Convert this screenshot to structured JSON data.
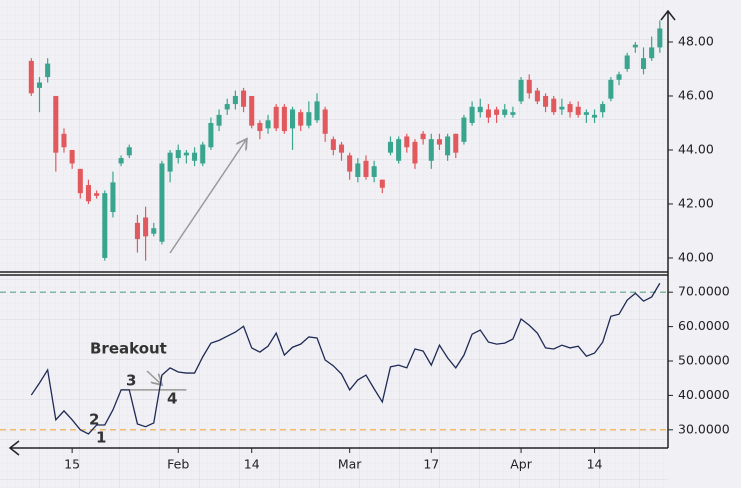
{
  "chart_data": [
    {
      "type": "candlestick",
      "x": [
        0,
        1,
        2,
        3,
        4,
        5,
        6,
        7,
        8,
        9,
        10,
        11,
        12,
        13,
        14,
        15,
        16,
        17,
        18,
        19,
        20,
        21,
        22,
        23,
        24,
        25,
        26,
        27,
        28,
        29,
        30,
        31,
        32,
        33,
        34,
        35,
        36,
        37,
        38,
        39,
        40,
        41,
        42,
        43,
        44,
        45,
        46,
        47,
        48,
        49,
        50,
        51,
        52,
        53,
        54,
        55,
        56,
        57,
        58,
        59,
        60,
        61,
        62,
        63,
        64,
        65,
        66,
        67,
        68,
        69,
        70,
        71,
        72,
        73,
        74,
        75,
        76,
        77
      ],
      "open": [
        47.3,
        46.3,
        46.7,
        46.0,
        44.6,
        44.0,
        43.3,
        42.7,
        42.4,
        40.0,
        41.7,
        43.5,
        43.8,
        41.3,
        41.5,
        40.9,
        40.6,
        43.2,
        43.7,
        43.8,
        43.6,
        43.5,
        44.1,
        44.9,
        45.5,
        45.7,
        46.2,
        46.0,
        45.0,
        44.8,
        45.6,
        45.6,
        44.8,
        45.4,
        44.9,
        45.1,
        45.5,
        44.4,
        44.2,
        43.8,
        43.0,
        43.6,
        43.0,
        42.9,
        43.9,
        43.6,
        44.5,
        44.3,
        44.6,
        43.6,
        44.4,
        43.8,
        44.6,
        44.3,
        45.0,
        45.4,
        45.5,
        45.5,
        45.3,
        45.3,
        45.8,
        46.6,
        46.2,
        46.0,
        45.9,
        45.5,
        45.7,
        45.6,
        45.3,
        45.2,
        45.4,
        45.9,
        46.6,
        47.0,
        47.8,
        47.0,
        47.4,
        47.8
      ],
      "high": [
        47.4,
        46.7,
        47.4,
        46.0,
        44.8,
        44.0,
        43.3,
        42.9,
        42.5,
        42.5,
        43.2,
        43.8,
        44.2,
        41.6,
        41.9,
        41.3,
        43.6,
        44.0,
        44.2,
        44.0,
        44.1,
        44.3,
        45.2,
        45.5,
        45.9,
        46.2,
        46.3,
        46.0,
        45.1,
        45.3,
        45.7,
        45.7,
        45.6,
        45.5,
        45.8,
        46.1,
        45.6,
        44.5,
        44.3,
        43.9,
        43.7,
        43.8,
        43.6,
        42.9,
        44.5,
        44.5,
        44.6,
        44.4,
        44.7,
        44.6,
        44.6,
        44.6,
        44.6,
        45.3,
        45.8,
        45.9,
        45.7,
        45.6,
        45.7,
        45.6,
        46.7,
        46.8,
        46.3,
        46.1,
        46.0,
        45.9,
        45.8,
        45.8,
        45.5,
        45.5,
        45.8,
        46.7,
        46.9,
        47.6,
        48.0,
        47.8,
        48.2,
        48.8
      ],
      "low": [
        46.0,
        45.4,
        46.5,
        43.2,
        43.9,
        43.3,
        42.2,
        42.0,
        42.2,
        39.9,
        41.5,
        43.4,
        43.7,
        40.2,
        39.9,
        40.8,
        40.5,
        42.8,
        43.5,
        43.5,
        43.4,
        43.4,
        44.0,
        44.7,
        45.3,
        45.5,
        45.4,
        44.8,
        44.4,
        44.6,
        44.7,
        44.6,
        44.0,
        44.7,
        44.8,
        45.0,
        44.3,
        43.8,
        43.6,
        42.9,
        42.8,
        42.9,
        42.8,
        42.4,
        43.8,
        43.5,
        43.9,
        43.3,
        44.2,
        43.3,
        44.0,
        43.6,
        43.7,
        44.2,
        44.9,
        45.2,
        45.0,
        45.0,
        45.2,
        45.2,
        45.7,
        45.9,
        45.7,
        45.4,
        45.3,
        45.3,
        45.2,
        45.2,
        45.0,
        45.0,
        45.2,
        45.8,
        46.4,
        46.9,
        47.6,
        46.8,
        47.3,
        47.6
      ],
      "close": [
        46.1,
        46.5,
        47.2,
        43.9,
        44.1,
        43.5,
        42.4,
        42.1,
        42.3,
        42.4,
        42.8,
        43.7,
        44.1,
        40.7,
        40.8,
        41.1,
        43.5,
        43.9,
        44.0,
        43.9,
        43.9,
        44.2,
        45.0,
        45.3,
        45.7,
        46.0,
        45.6,
        44.9,
        44.7,
        45.1,
        44.8,
        44.7,
        45.5,
        44.9,
        45.4,
        45.8,
        44.6,
        44.0,
        43.9,
        43.2,
        43.5,
        43.0,
        43.4,
        42.6,
        44.3,
        44.4,
        44.1,
        43.5,
        44.4,
        44.4,
        44.2,
        44.5,
        43.9,
        45.2,
        45.6,
        45.6,
        45.2,
        45.3,
        45.5,
        45.4,
        46.6,
        46.1,
        45.8,
        45.6,
        45.4,
        45.6,
        45.4,
        45.3,
        45.4,
        45.3,
        45.7,
        46.6,
        46.8,
        47.5,
        47.9,
        47.4,
        47.8,
        48.5
      ],
      "up_color": "#3aa58e",
      "down_color": "#e2595d",
      "xlim": [
        -2,
        78
      ],
      "ylim": [
        39.48,
        49.37
      ],
      "yticks": [
        {
          "value": 40,
          "label": "40.00"
        },
        {
          "value": 42,
          "label": "42.00"
        },
        {
          "value": 44,
          "label": "44.00"
        },
        {
          "value": 46,
          "label": "46.00"
        },
        {
          "value": 48,
          "label": "48.00"
        }
      ]
    },
    {
      "type": "line",
      "x": [
        0,
        1,
        2,
        3,
        4,
        5,
        6,
        7,
        8,
        9,
        10,
        11,
        12,
        13,
        14,
        15,
        16,
        17,
        18,
        19,
        20,
        21,
        22,
        23,
        24,
        25,
        26,
        27,
        28,
        29,
        30,
        31,
        32,
        33,
        34,
        35,
        36,
        37,
        38,
        39,
        40,
        41,
        42,
        43,
        44,
        45,
        46,
        47,
        48,
        49,
        50,
        51,
        52,
        53,
        54,
        55,
        56,
        57,
        58,
        59,
        60,
        61,
        62,
        63,
        64,
        65,
        66,
        67,
        68,
        69,
        70,
        71,
        72,
        73,
        74,
        75,
        76,
        77
      ],
      "values": [
        40.1,
        43.6,
        47.4,
        32.9,
        35.5,
        32.9,
        30,
        28.8,
        31.4,
        31.4,
        35.8,
        41.6,
        41.6,
        31.7,
        30.9,
        32,
        45.9,
        48,
        46.8,
        46.5,
        46.5,
        51.2,
        55.2,
        56,
        57.2,
        58.4,
        60.1,
        53.8,
        52.6,
        54.3,
        58.1,
        51.7,
        54,
        54.9,
        57,
        56.7,
        50.3,
        48.6,
        46.2,
        41.6,
        44.5,
        45.9,
        41.9,
        38.1,
        48.3,
        48.8,
        48,
        53.5,
        52.9,
        48.8,
        54.6,
        50.9,
        48,
        51.7,
        57.8,
        59,
        55.5,
        54.9,
        55.2,
        56.4,
        62.2,
        60.4,
        58.1,
        53.8,
        53.5,
        54.6,
        53.8,
        54.3,
        51.4,
        52.3,
        55.5,
        63,
        63.6,
        67.7,
        69.7,
        67.4,
        68.6,
        72.6
      ],
      "color": "#1f2a55",
      "xlim": [
        -2,
        78
      ],
      "ylim": [
        25,
        75
      ],
      "yticks": [
        {
          "value": 30,
          "label": "30.0000"
        },
        {
          "value": 40,
          "label": "40.0000"
        },
        {
          "value": 50,
          "label": "50.0000"
        },
        {
          "value": 60,
          "label": "60.0000"
        },
        {
          "value": 70,
          "label": "70.0000"
        }
      ],
      "xticks": [
        {
          "value": 5,
          "label": "15"
        },
        {
          "value": 18,
          "label": "Feb"
        },
        {
          "value": 27,
          "label": "14"
        },
        {
          "value": 39,
          "label": "Mar"
        },
        {
          "value": 49,
          "label": "17"
        },
        {
          "value": 60,
          "label": "Apr"
        },
        {
          "value": 69,
          "label": "14"
        }
      ],
      "hlines": [
        {
          "value": 70,
          "color": "#5aa58c"
        },
        {
          "value": 30,
          "color": "#f0a640"
        }
      ],
      "breakout_level": 41.6,
      "annotations": [
        "Breakout",
        "1",
        "2",
        "3",
        "4"
      ]
    }
  ]
}
